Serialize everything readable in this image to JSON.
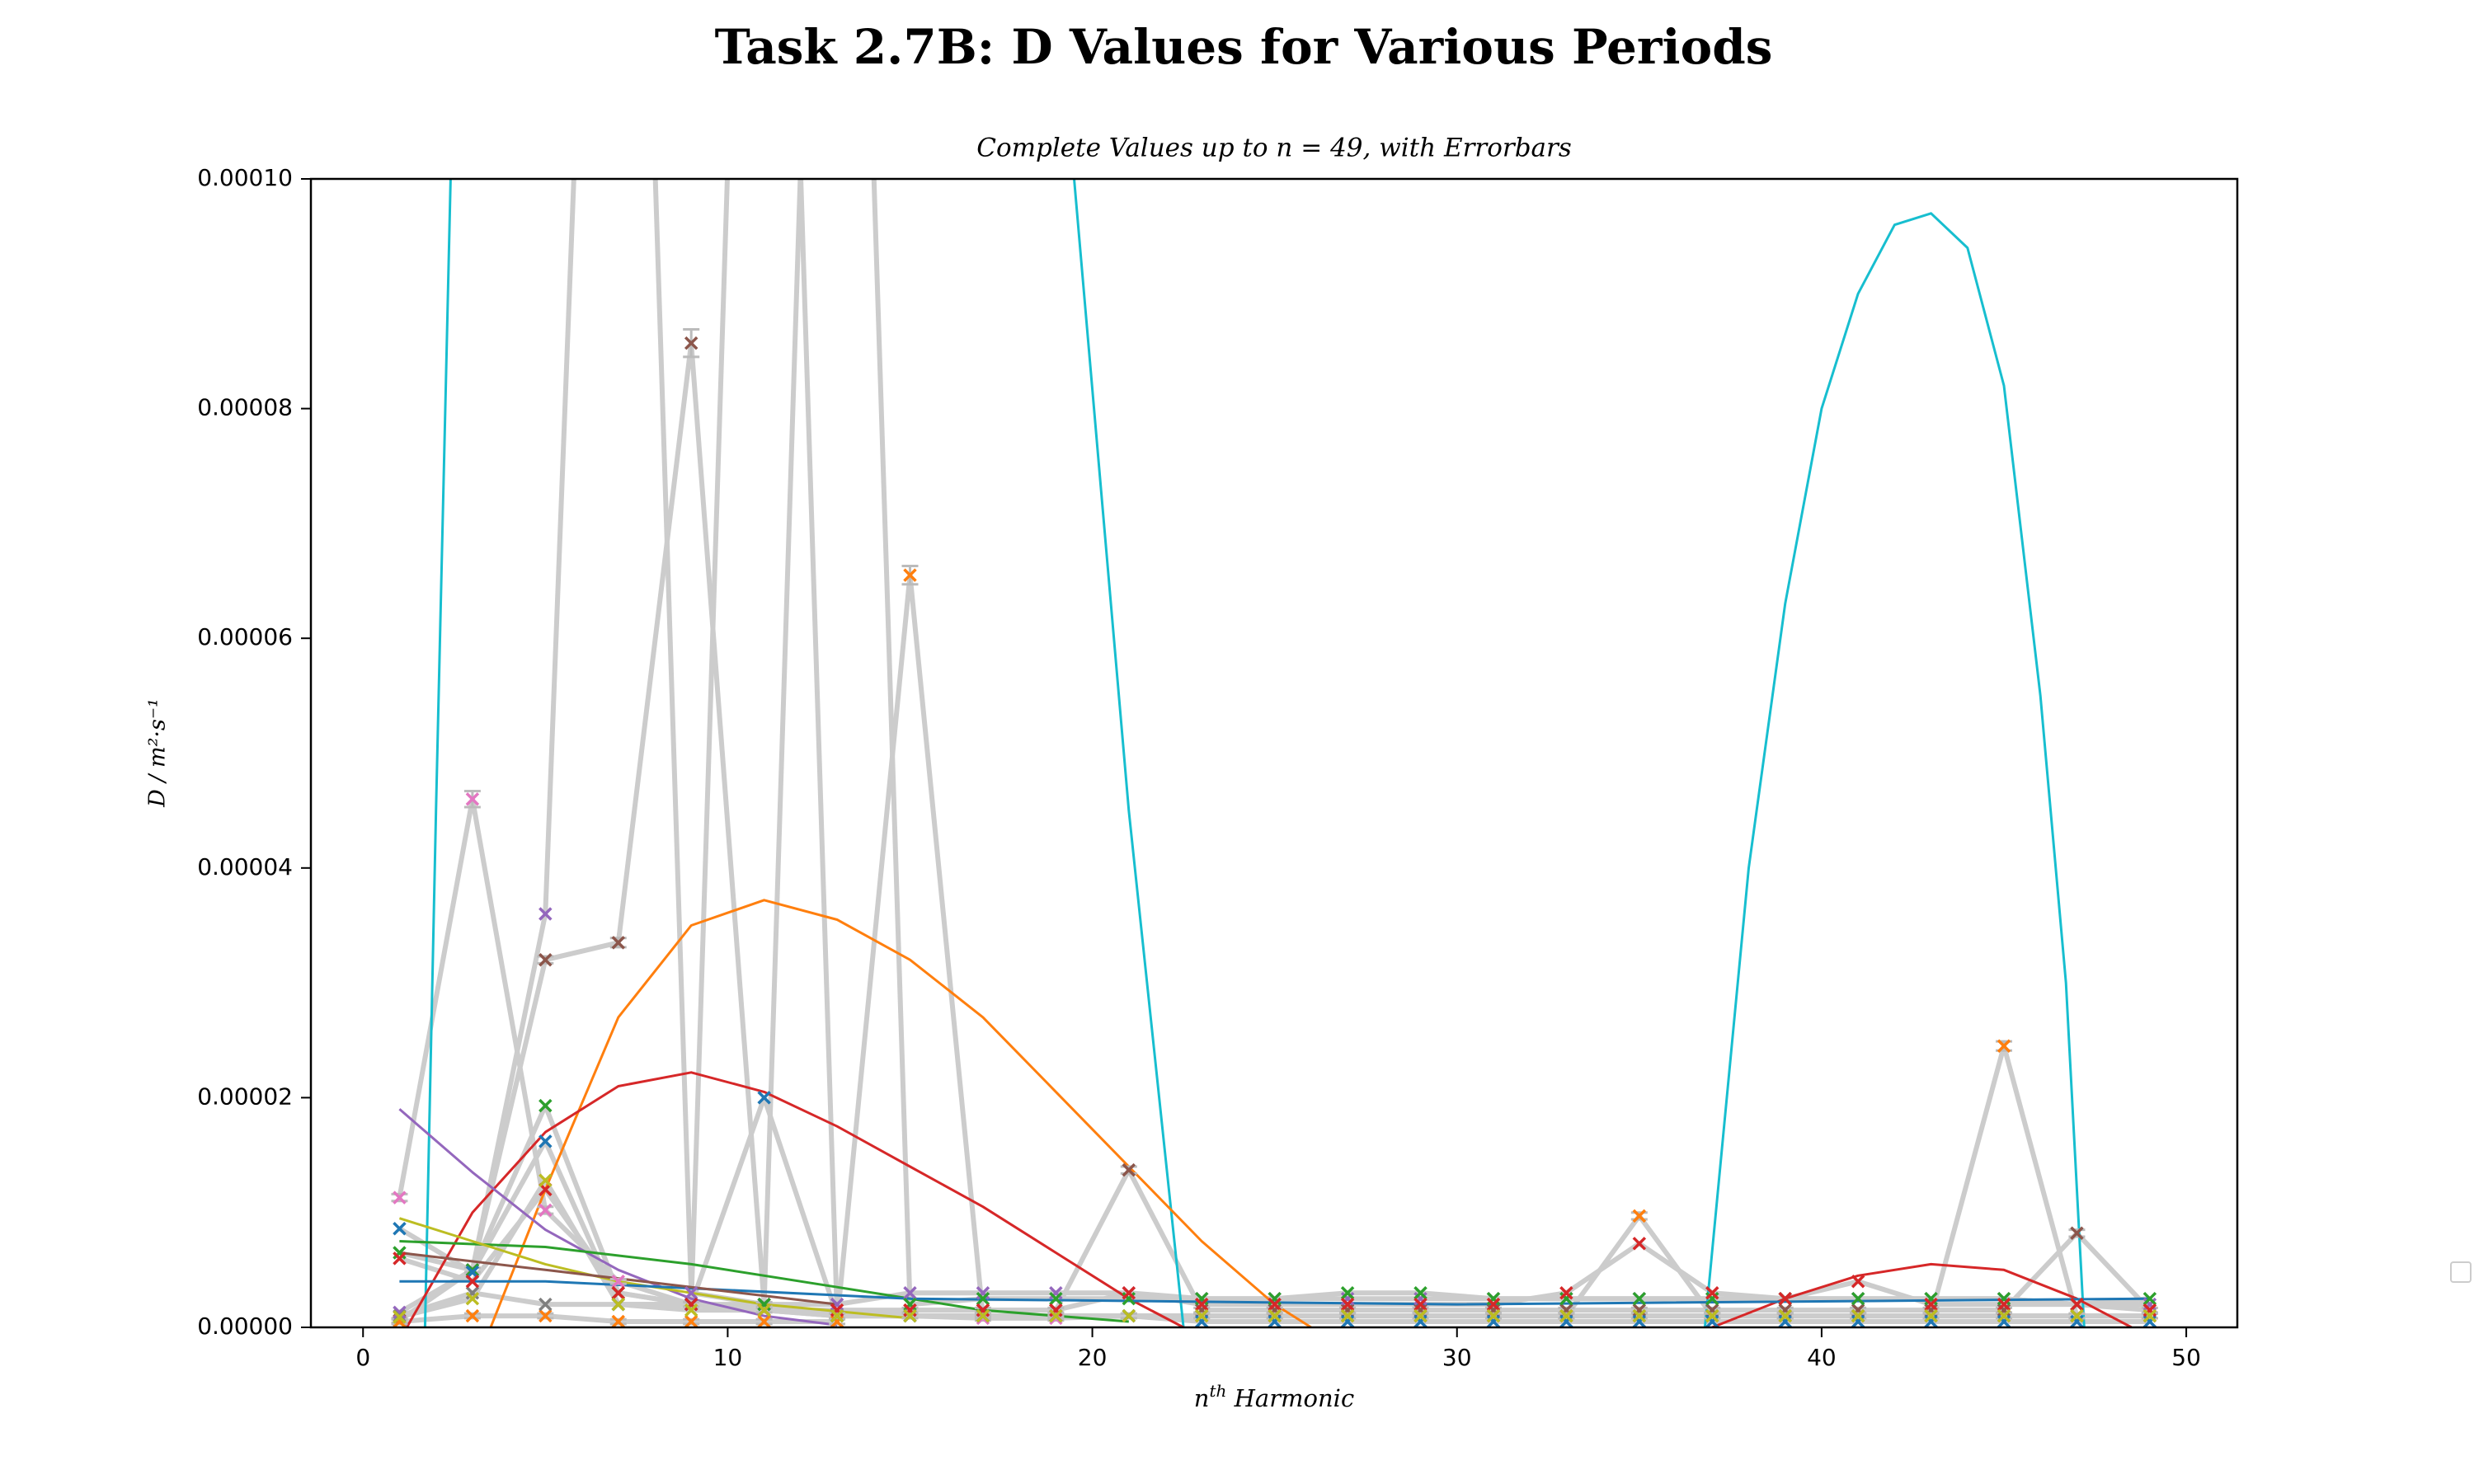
{
  "chart_data": {
    "type": "line",
    "title": "Task 2.7B: D Values for Various Periods",
    "subtitle": "Complete Values up to n = 49, with Errorbars",
    "xlabel": [
      "n",
      "th",
      " Harmonic"
    ],
    "ylabel": "D / m²·s⁻¹",
    "xlim": [
      -1.43,
      51.4
    ],
    "xticks": [
      0,
      10,
      20,
      30,
      40,
      50
    ],
    "ylim": [
      0,
      0.0001
    ],
    "yticks": [
      {
        "value": 0,
        "label": "0.00000"
      },
      {
        "value": 2e-05,
        "label": "0.00002"
      },
      {
        "value": 4e-05,
        "label": "0.00004"
      },
      {
        "value": 6e-05,
        "label": "0.00006"
      },
      {
        "value": 8e-05,
        "label": "0.00008"
      },
      {
        "value": 0.0001,
        "label": "0.00010"
      }
    ],
    "line_color": "#cccccc",
    "x": [
      1,
      3,
      5,
      7,
      9,
      11,
      13,
      15,
      17,
      19,
      21,
      23,
      25,
      27,
      29,
      31,
      33,
      35,
      37,
      39,
      41,
      43,
      45,
      47,
      49
    ],
    "series": [
      {
        "color": "#e377c2",
        "values": [
          1.13e-05,
          4.6e-05,
          1.02e-05,
          4e-06,
          2e-06,
          1.5e-06,
          1e-06,
          1e-06,
          8e-07,
          8e-07,
          1e-06,
          1e-06,
          1e-06,
          1e-06,
          1e-06,
          1e-06,
          1e-06,
          1e-06,
          1e-06,
          1e-06,
          1e-06,
          1e-06,
          1e-06,
          1e-06,
          1e-06
        ],
        "errors": [
          3e-07,
          7e-07,
          3e-07,
          2e-07,
          2e-07,
          2e-07,
          2e-07,
          2e-07,
          2e-07,
          2e-07,
          2e-07,
          2e-07,
          2e-07,
          2e-07,
          2e-07,
          2e-07,
          2e-07,
          2e-07,
          2e-07,
          2e-07,
          2e-07,
          2e-07,
          2e-07,
          2e-07,
          2e-07
        ]
      },
      {
        "color": "#8c564b",
        "values": [
          6e-07,
          5e-06,
          3.2e-05,
          3.35e-05,
          8.57e-05,
          2e-06,
          1e-06,
          1.5e-06,
          1.5e-06,
          1.5e-06,
          1.37e-05,
          1.5e-06,
          1.5e-06,
          1.5e-06,
          1.5e-06,
          1.5e-06,
          1.5e-06,
          1.5e-06,
          1.5e-06,
          1.5e-06,
          1.5e-06,
          1.5e-06,
          1.5e-06,
          8.2e-06,
          1.5e-06
        ],
        "errors": [
          2e-07,
          2e-07,
          3e-07,
          4e-07,
          1.2e-06,
          2e-07,
          2e-07,
          2e-07,
          2e-07,
          2e-07,
          3e-07,
          2e-07,
          2e-07,
          2e-07,
          2e-07,
          2e-07,
          2e-07,
          2e-07,
          2e-07,
          2e-07,
          2e-07,
          2e-07,
          2e-07,
          3e-07,
          2e-07
        ]
      },
      {
        "color": "#ff7f0e",
        "values": [
          5e-07,
          1e-06,
          1e-06,
          5e-07,
          5e-07,
          5e-07,
          5e-07,
          6.55e-05,
          1e-06,
          1e-06,
          1e-06,
          1e-06,
          1e-06,
          1e-06,
          1e-06,
          1e-06,
          1e-06,
          9.7e-06,
          1e-06,
          1e-06,
          1e-06,
          1e-06,
          2.45e-05,
          1e-06,
          1e-06
        ],
        "errors": [
          2e-07,
          2e-07,
          2e-07,
          2e-07,
          2e-07,
          2e-07,
          2e-07,
          8e-07,
          2e-07,
          2e-07,
          2e-07,
          2e-07,
          2e-07,
          2e-07,
          2e-07,
          2e-07,
          2e-07,
          3e-07,
          2e-07,
          2e-07,
          2e-07,
          2e-07,
          4e-07,
          2e-07,
          2e-07
        ]
      },
      {
        "color": "#9467bd",
        "values": [
          1.3e-06,
          5e-06,
          3.6e-05,
          0.0002,
          3e-06,
          2e-06,
          2e-06,
          3e-06,
          3e-06,
          3e-06,
          3e-06,
          2.5e-06,
          2.5e-06,
          2.5e-06,
          2.5e-06,
          2.5e-06,
          2.5e-06,
          2.5e-06,
          2.5e-06,
          2.5e-06,
          2.5e-06,
          2.5e-06,
          2.5e-06,
          2e-06,
          2e-06
        ]
      },
      {
        "color": "#7f7f7f",
        "values": [
          1e-06,
          3e-06,
          2e-06,
          2e-06,
          2e-06,
          0.0002,
          1e-06,
          1e-06,
          1e-06,
          1e-06,
          1e-06,
          1e-06,
          1e-06,
          1e-06,
          1e-06,
          1e-06,
          1e-06,
          1e-06,
          1e-06,
          1e-06,
          1e-06,
          1e-06,
          1e-06,
          1e-06,
          1e-06
        ]
      },
      {
        "color": "#2ca02c",
        "values": [
          6.5e-06,
          5e-06,
          1.93e-05,
          3e-06,
          2e-06,
          2e-06,
          0.0002,
          2e-06,
          2.5e-06,
          2.5e-06,
          2.5e-06,
          2.5e-06,
          2.5e-06,
          3e-06,
          3e-06,
          2.5e-06,
          2.5e-06,
          2.5e-06,
          2.5e-06,
          2.5e-06,
          2.5e-06,
          2.5e-06,
          2.5e-06,
          2e-06,
          2.5e-06
        ]
      },
      {
        "color": "#1f77b4",
        "values": [
          8.6e-06,
          4.8e-06,
          1.62e-05,
          2e-06,
          2e-06,
          2e-05,
          1e-06,
          1e-06,
          1e-06,
          1e-06,
          1e-06,
          5e-07,
          5e-07,
          5e-07,
          5e-07,
          5e-07,
          5e-07,
          5e-07,
          5e-07,
          5e-07,
          5e-07,
          5e-07,
          5e-07,
          5e-07,
          5e-07
        ]
      },
      {
        "color": "#d62728",
        "values": [
          6e-06,
          4e-06,
          1.2e-05,
          3e-06,
          2e-06,
          1.5e-06,
          1.5e-06,
          1.5e-06,
          1.5e-06,
          1.5e-06,
          3e-06,
          2e-06,
          2e-06,
          2e-06,
          2e-06,
          2e-06,
          3e-06,
          7.3e-06,
          3e-06,
          2.5e-06,
          4e-06,
          2e-06,
          2e-06,
          2e-06,
          1.5e-06
        ]
      },
      {
        "color": "#bcbd22",
        "values": [
          9e-07,
          2.5e-06,
          1.28e-05,
          2e-06,
          1.5e-06,
          1.5e-06,
          1e-06,
          1e-06,
          1e-06,
          1e-06,
          1e-06,
          1e-06,
          1e-06,
          1e-06,
          1e-06,
          1e-06,
          1e-06,
          1e-06,
          1e-06,
          1e-06,
          1e-06,
          1e-06,
          1e-06,
          1e-06,
          1e-06
        ]
      }
    ],
    "fits": [
      {
        "color": "#17becf",
        "x": [
          1.7,
          2.0,
          2.4,
          2.8,
          null,
          19.0,
          19.5,
          21,
          22.5,
          null,
          36.8,
          38,
          39,
          40,
          41,
          42,
          43,
          44,
          45,
          46,
          46.7,
          47.2
        ],
        "values": [
          0,
          4.5e-05,
          0.0001,
          0.00015,
          null,
          0.00014,
          0.0001,
          4.5e-05,
          0,
          null,
          0,
          4e-05,
          6.3e-05,
          8e-05,
          9e-05,
          9.6e-05,
          9.7e-05,
          9.4e-05,
          8.2e-05,
          5.5e-05,
          3e-05,
          0
        ]
      },
      {
        "color": "#ff7f0e",
        "x": [
          3.5,
          5,
          7,
          9,
          11,
          13,
          15,
          17,
          19,
          21,
          23,
          25,
          26
        ],
        "values": [
          0,
          1.2e-05,
          2.7e-05,
          3.5e-05,
          3.72e-05,
          3.55e-05,
          3.2e-05,
          2.7e-05,
          2.05e-05,
          1.4e-05,
          7.5e-06,
          2e-06,
          0
        ]
      },
      {
        "color": "#d62728",
        "x": [
          1.2,
          3,
          5,
          7,
          9,
          11,
          13,
          15,
          17,
          19,
          21,
          22.5,
          null,
          37,
          39,
          41,
          43,
          45,
          47,
          48.5
        ],
        "values": [
          0,
          1e-05,
          1.7e-05,
          2.1e-05,
          2.22e-05,
          2.05e-05,
          1.75e-05,
          1.4e-05,
          1.05e-05,
          6.5e-06,
          2.5e-06,
          0,
          null,
          0,
          2.5e-06,
          4.5e-06,
          5.5e-06,
          5e-06,
          2.5e-06,
          0
        ]
      },
      {
        "color": "#9467bd",
        "x": [
          1,
          3,
          5,
          7,
          9,
          11,
          13
        ],
        "values": [
          1.9e-05,
          1.35e-05,
          8.5e-06,
          5e-06,
          2.5e-06,
          1e-06,
          2e-07
        ]
      },
      {
        "color": "#2ca02c",
        "x": [
          1,
          5,
          9,
          13,
          17,
          21
        ],
        "values": [
          7.5e-06,
          7e-06,
          5.5e-06,
          3.5e-06,
          1.5e-06,
          5e-07
        ]
      },
      {
        "color": "#bcbd22",
        "x": [
          1,
          3,
          5,
          7,
          11,
          15
        ],
        "values": [
          9.5e-06,
          7.5e-06,
          5.5e-06,
          4e-06,
          2e-06,
          8e-07
        ]
      },
      {
        "color": "#1f77b4",
        "x": [
          1,
          5,
          15,
          30,
          49
        ],
        "values": [
          4e-06,
          4e-06,
          2.5e-06,
          2e-06,
          2.5e-06
        ]
      },
      {
        "color": "#8c564b",
        "x": [
          1,
          5,
          9,
          13
        ],
        "values": [
          6.5e-06,
          5e-06,
          3.5e-06,
          2e-06
        ]
      }
    ]
  }
}
